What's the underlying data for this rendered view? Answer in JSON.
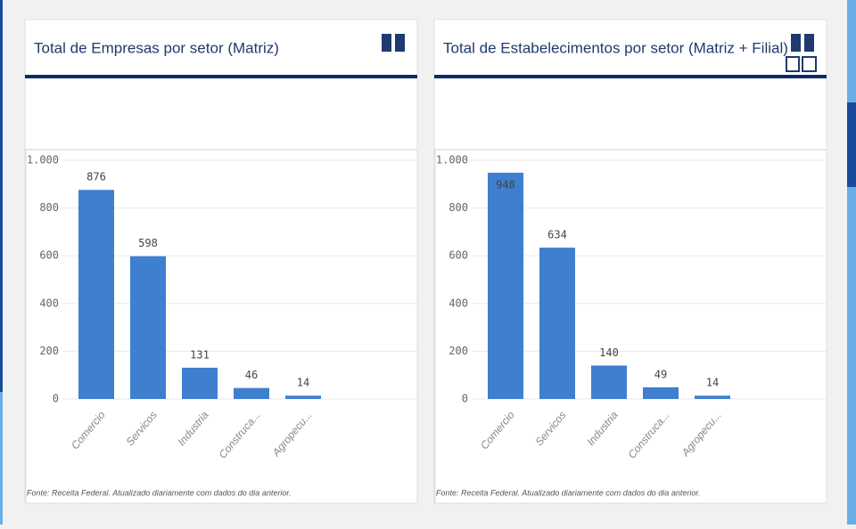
{
  "chart_data": [
    {
      "type": "bar",
      "title": "Total de Empresas por setor (Matriz)",
      "categories": [
        "Comercio",
        "Servicos",
        "Industria",
        "Construca...",
        "Agropecu..."
      ],
      "values": [
        876,
        598,
        131,
        46,
        14
      ],
      "color": "#3f7fcf",
      "ylim": [
        0,
        1000
      ],
      "yticks": [
        0,
        200,
        400,
        600,
        800,
        {
          "value": 1000,
          "label": "1.000"
        }
      ],
      "grid": true,
      "source": "Fonte: Receita Federal. Atualizado diariamente com dados do dia anterior."
    },
    {
      "type": "bar",
      "title": "Total de Estabelecimentos por setor (Matriz + Filial)",
      "categories": [
        "Comercio",
        "Servicos",
        "Industria",
        "Construca...",
        "Agropecu..."
      ],
      "values": [
        948,
        634,
        140,
        49,
        14
      ],
      "color": "#3f7fcf",
      "ylim": [
        0,
        1000
      ],
      "yticks": [
        0,
        200,
        400,
        600,
        800,
        {
          "value": 1000,
          "label": "1.000"
        }
      ],
      "grid": true,
      "source": "Fonte: Receita Federal. Atualizado diariamente com dados do dia anterior."
    }
  ]
}
